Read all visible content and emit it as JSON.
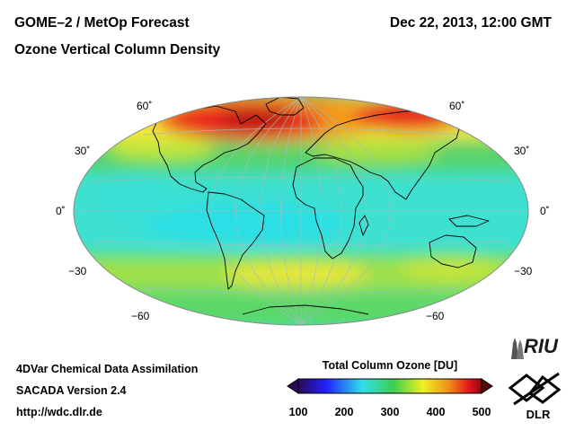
{
  "header": {
    "title_line1": "GOME–2 / MetOp Forecast",
    "title_line2": "Ozone Vertical Column Density",
    "datetime": "Dec 22, 2013, 12:00 GMT"
  },
  "map": {
    "projection": "Hammer-Aitoff",
    "lat_labels": [
      "60˚",
      "30˚",
      "0˚",
      "−30",
      "−60"
    ],
    "colors": {
      "violet": "#2a0b55",
      "blue": "#2020ff",
      "cyan": "#2ee0e8",
      "green": "#3ccf50",
      "yellow": "#f0f020",
      "orange": "#f09018",
      "red": "#e8141c",
      "dark_red": "#8a0a10"
    }
  },
  "footer": {
    "line1": "4DVar Chemical Data Assimilation",
    "line2": "SACADA Version 2.4",
    "line3": "http://wdc.dlr.de"
  },
  "colorbar": {
    "title": "Total Column Ozone [DU]",
    "ticks": [
      "100",
      "200",
      "300",
      "400",
      "500"
    ],
    "min": 100,
    "max": 500
  },
  "logos": {
    "riu": "RIU",
    "dlr": "DLR"
  }
}
